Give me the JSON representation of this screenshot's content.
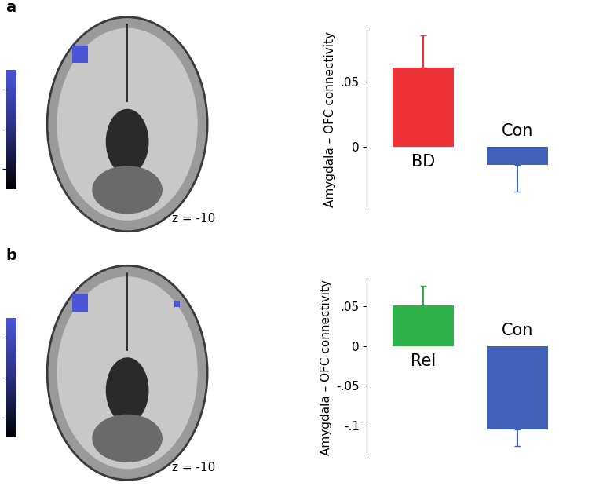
{
  "chart_data": [
    {
      "type": "bar",
      "y_label": "Amygdala – OFC connectivity",
      "categories": [
        "BD",
        "Con"
      ],
      "values": [
        0.061,
        -0.014
      ],
      "errors": [
        0.025,
        0.021
      ],
      "colors": [
        "#ee3338",
        "#4262b8"
      ],
      "ylim": [
        -0.048,
        0.09
      ],
      "yticks": [
        0,
        {
          "value": 0.05,
          "label": ".05"
        }
      ],
      "tick_labels": "y"
    },
    {
      "type": "bar",
      "y_label": "Amygdala – OFC connectivity",
      "categories": [
        "Rel",
        "Con"
      ],
      "values": [
        0.051,
        -0.105
      ],
      "errors": [
        0.025,
        0.021
      ],
      "colors": [
        "#2db34a",
        "#4262b8"
      ],
      "ylim": [
        -0.14,
        0.085
      ],
      "yticks": [
        {
          "value": -0.1,
          "label": "-.1"
        },
        {
          "value": -0.05,
          "label": "-.05"
        },
        0,
        {
          "value": 0.05,
          "label": ".05"
        }
      ],
      "tick_labels": "y"
    }
  ],
  "panels": [
    {
      "label": "a",
      "slice": "z = -10",
      "colorbar": {
        "range": [
          0,
          6
        ],
        "ticks": [
          1,
          3,
          5
        ]
      }
    },
    {
      "label": "b",
      "slice": "z = -10",
      "colorbar": {
        "range": [
          0,
          6
        ],
        "ticks": [
          1,
          3,
          5
        ]
      }
    }
  ]
}
